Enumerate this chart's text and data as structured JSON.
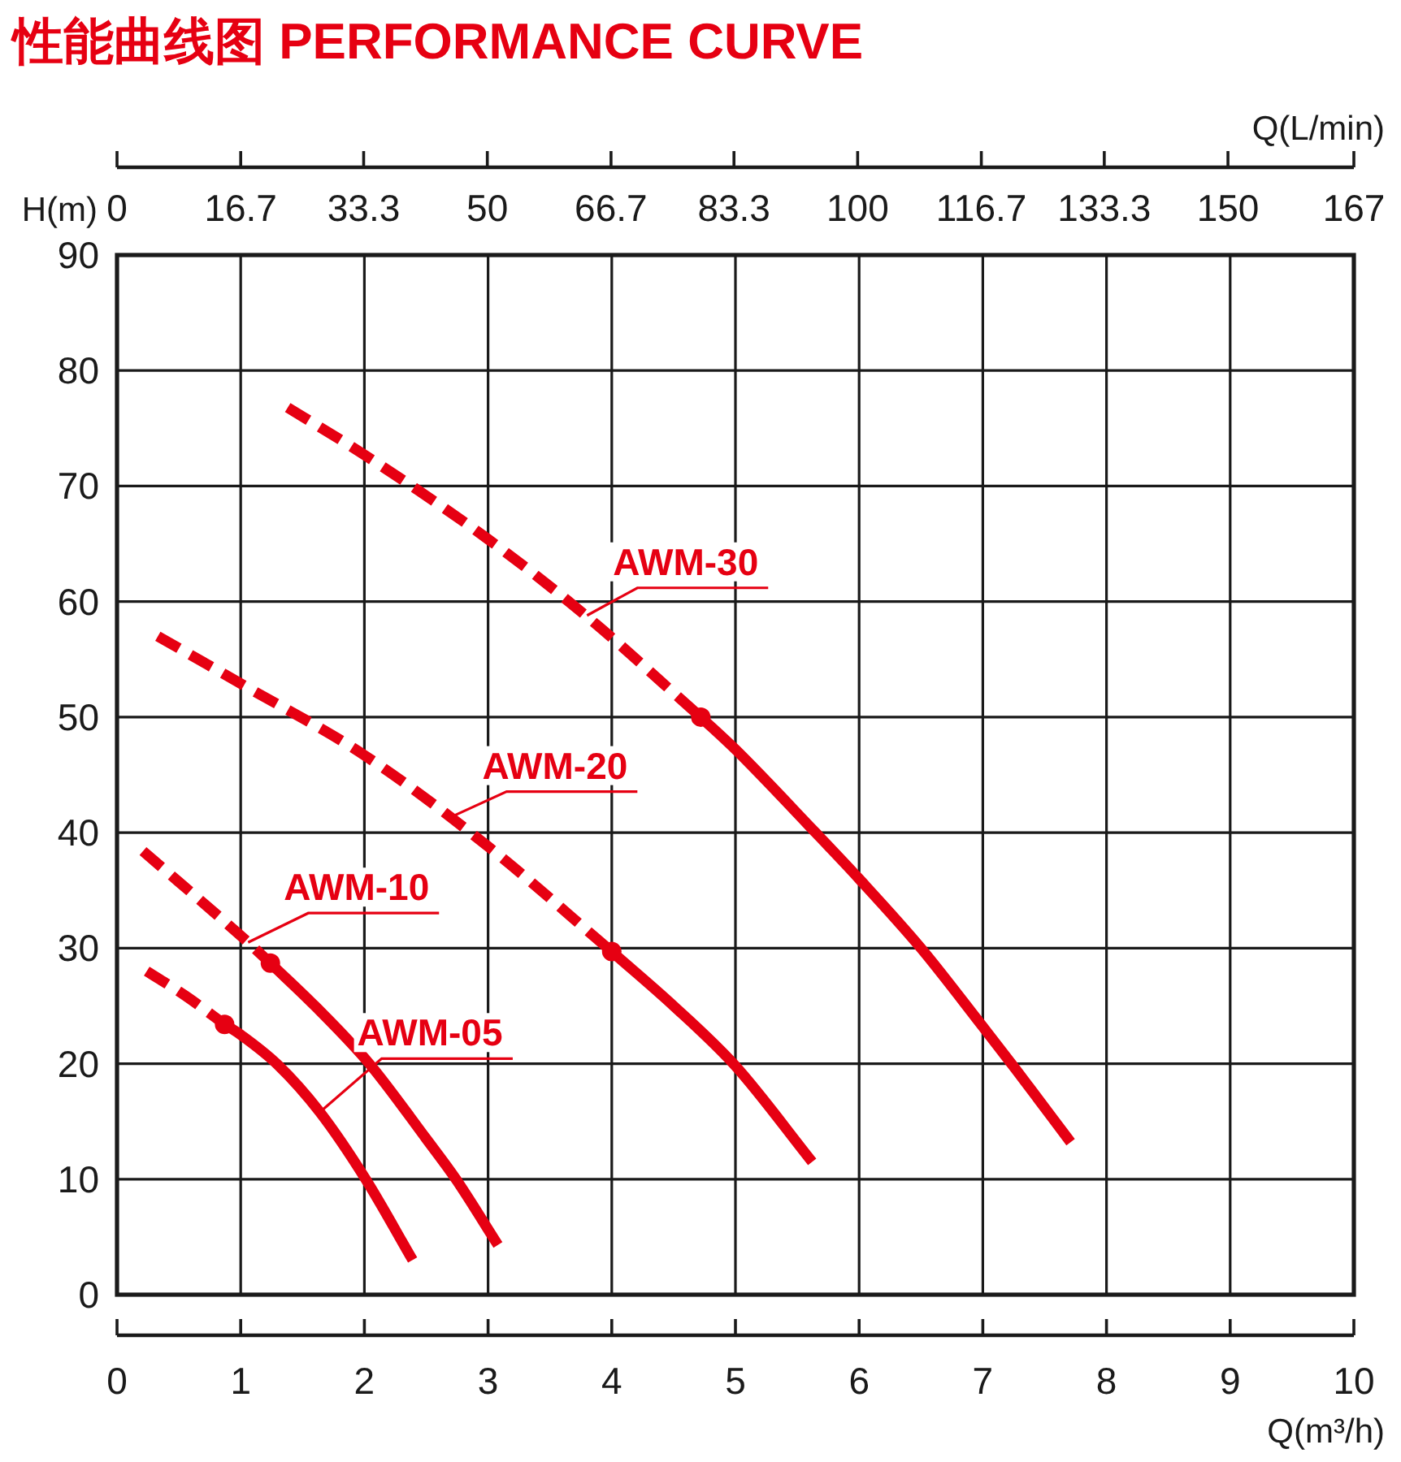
{
  "chart_data": {
    "type": "line",
    "title": "性能曲线图 PERFORMANCE CURVE",
    "xlabel": "Q(m³/h)",
    "x2label": "Q(L/min)",
    "ylabel": "H(m)",
    "xlim": [
      0,
      10
    ],
    "xticks": [
      0,
      1,
      2,
      3,
      4,
      5,
      6,
      7,
      8,
      9,
      10
    ],
    "x2lim": [
      0,
      167
    ],
    "x2ticks": [
      0,
      16.7,
      33.3,
      50,
      66.7,
      83.3,
      100,
      116.7,
      133.3,
      150,
      167
    ],
    "ylim": [
      0,
      90
    ],
    "yticks": [
      0,
      10,
      20,
      30,
      40,
      50,
      60,
      70,
      80,
      90
    ],
    "grid": true,
    "series": [
      {
        "type": "line",
        "color": "#e60012",
        "line_style": "dashed",
        "x": [
          1.38,
          2.0,
          3.0,
          3.8,
          4.72
        ],
        "values": [
          76.8,
          72.7,
          65.4,
          58.7,
          50.0
        ]
      },
      {
        "type": "line",
        "color": "#e60012",
        "line_style": "solid",
        "x": [
          4.72,
          5.0,
          5.63,
          6.0,
          6.5,
          7.0,
          7.26,
          7.71
        ],
        "values": [
          50.0,
          47.2,
          40.2,
          36.0,
          30.0,
          23.2,
          19.6,
          13.2
        ]
      },
      {
        "type": "scatter",
        "color": "#e60012",
        "marker": "circle",
        "x": [
          4.72
        ],
        "values": [
          50.0
        ]
      },
      {
        "type": "line",
        "color": "#e60012",
        "line_style": "dashed",
        "x": [
          0.33,
          1.0,
          2.0,
          3.0,
          4.0
        ],
        "values": [
          57.0,
          52.9,
          46.7,
          38.8,
          29.7
        ]
      },
      {
        "type": "line",
        "color": "#e60012",
        "line_style": "solid",
        "x": [
          4.0,
          4.5,
          5.0,
          5.62
        ],
        "values": [
          29.7,
          25.0,
          19.8,
          11.5
        ]
      },
      {
        "type": "scatter",
        "color": "#e60012",
        "marker": "circle",
        "x": [
          4.0
        ],
        "values": [
          29.7
        ]
      },
      {
        "type": "line",
        "color": "#e60012",
        "line_style": "dashed",
        "x": [
          0.21,
          1.06,
          1.24
        ],
        "values": [
          38.4,
          30.5,
          28.7
        ]
      },
      {
        "type": "line",
        "color": "#e60012",
        "line_style": "solid",
        "x": [
          1.24,
          1.6,
          2.04,
          2.5,
          2.74,
          3.08
        ],
        "values": [
          28.7,
          25.0,
          20.0,
          13.5,
          10.0,
          4.3
        ]
      },
      {
        "type": "scatter",
        "color": "#e60012",
        "marker": "circle",
        "x": [
          1.24
        ],
        "values": [
          28.7
        ]
      },
      {
        "type": "line",
        "color": "#e60012",
        "line_style": "dashed",
        "x": [
          0.24,
          0.55,
          0.87
        ],
        "values": [
          28.0,
          25.9,
          23.4
        ]
      },
      {
        "type": "line",
        "color": "#e60012",
        "line_style": "solid",
        "x": [
          0.87,
          1.0,
          1.3,
          1.64,
          2.01,
          2.39
        ],
        "values": [
          23.4,
          22.5,
          19.9,
          15.8,
          10.0,
          3.0
        ]
      },
      {
        "type": "scatter",
        "color": "#e60012",
        "marker": "circle",
        "x": [
          0.87
        ],
        "values": [
          23.4
        ]
      }
    ],
    "annotations": [
      {
        "text": "AWM-30",
        "x": 3.8,
        "y": 58.8
      },
      {
        "text": "AWM-20",
        "x": 2.69,
        "y": 41.3
      },
      {
        "text": "AWM-10",
        "x": 1.06,
        "y": 30.5
      },
      {
        "text": "AWM-05",
        "x": 1.64,
        "y": 15.8
      }
    ]
  }
}
